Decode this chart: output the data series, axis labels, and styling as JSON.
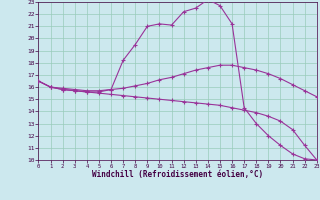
{
  "bg_color": "#cce8ee",
  "grid_color": "#99ccbb",
  "line_color": "#993399",
  "xlabel": "Windchill (Refroidissement éolien,°C)",
  "xlim": [
    0,
    23
  ],
  "ylim": [
    10,
    23
  ],
  "xticks": [
    0,
    1,
    2,
    3,
    4,
    5,
    6,
    7,
    8,
    9,
    10,
    11,
    12,
    13,
    14,
    15,
    16,
    17,
    18,
    19,
    20,
    21,
    22,
    23
  ],
  "yticks": [
    10,
    11,
    12,
    13,
    14,
    15,
    16,
    17,
    18,
    19,
    20,
    21,
    22,
    23
  ],
  "line_hump_x": [
    0,
    1,
    2,
    3,
    4,
    5,
    6,
    7,
    8,
    9,
    10,
    11,
    12,
    13,
    14,
    15,
    16,
    17,
    18,
    19,
    20,
    21,
    22,
    23
  ],
  "line_hump_y": [
    16.5,
    16.0,
    15.8,
    15.7,
    15.6,
    15.6,
    15.8,
    18.2,
    19.5,
    21.0,
    21.2,
    21.1,
    22.2,
    22.5,
    23.2,
    22.7,
    21.2,
    14.3,
    13.0,
    12.0,
    11.2,
    10.5,
    10.1,
    10.0
  ],
  "line_med_x": [
    0,
    1,
    2,
    3,
    4,
    5,
    6,
    7,
    8,
    9,
    10,
    11,
    12,
    13,
    14,
    15,
    16,
    17,
    18,
    19,
    20,
    21,
    22,
    23
  ],
  "line_med_y": [
    16.5,
    16.0,
    15.9,
    15.8,
    15.7,
    15.7,
    15.8,
    15.9,
    16.1,
    16.3,
    16.6,
    16.8,
    17.1,
    17.4,
    17.6,
    17.8,
    17.8,
    17.6,
    17.4,
    17.1,
    16.7,
    16.2,
    15.7,
    15.2
  ],
  "line_low_x": [
    0,
    1,
    2,
    3,
    4,
    5,
    6,
    7,
    8,
    9,
    10,
    11,
    12,
    13,
    14,
    15,
    16,
    17,
    18,
    19,
    20,
    21,
    22,
    23
  ],
  "line_low_y": [
    16.5,
    16.0,
    15.8,
    15.7,
    15.6,
    15.5,
    15.4,
    15.3,
    15.2,
    15.1,
    15.0,
    14.9,
    14.8,
    14.7,
    14.6,
    14.5,
    14.3,
    14.1,
    13.9,
    13.6,
    13.2,
    12.5,
    11.2,
    10.0
  ]
}
